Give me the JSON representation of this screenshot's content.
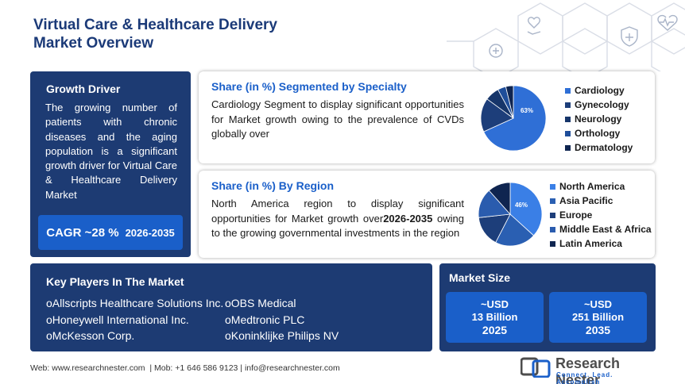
{
  "title": {
    "line1": "Virtual Care & Healthcare Delivery",
    "line2": "Market Overview"
  },
  "growth_driver": {
    "heading": "Growth Driver",
    "text": "The growing number of patients with chronic diseases and the aging population is a significant growth driver for Virtual Care & Healthcare Delivery Market",
    "cagr_label": "CAGR ~28 %",
    "cagr_years": "2026-2035"
  },
  "specialty": {
    "heading": "Share (in %) Segmented by Specialty",
    "text": "Cardiology Segment to display significant opportunities for Market growth owing to the prevalence of CVDs globally over",
    "pie_label": "63%",
    "legend": [
      {
        "label": "Cardiology",
        "color": "#2f6fd6"
      },
      {
        "label": "Gynecology",
        "color": "#1d3e7a"
      },
      {
        "label": "Neurology",
        "color": "#16356a"
      },
      {
        "label": "Orthology",
        "color": "#1f4e9a"
      },
      {
        "label": "Dermatology",
        "color": "#0f2550"
      }
    ]
  },
  "region": {
    "heading": "Share (in %) By Region",
    "text_before": "North America region to display significant opportunities for Market growth over",
    "text_years": "2026-2035",
    "text_after": "owing to the growing governmental investments in the region",
    "pie_label": "46%",
    "legend": [
      {
        "label": "North America",
        "color": "#3a7fe6"
      },
      {
        "label": "Asia Pacific",
        "color": "#2a5fb2"
      },
      {
        "label": "Europe",
        "color": "#1d3e7a"
      },
      {
        "label": "Middle East & Africa",
        "color": "#2a5cae"
      },
      {
        "label": "Latin America",
        "color": "#0f2550"
      }
    ]
  },
  "players": {
    "heading": "Key Players In The Market",
    "col_a": [
      "oAllscripts Healthcare Solutions Inc.",
      "oHoneywell International Inc.",
      "oMcKesson Corp."
    ],
    "col_b": [
      "oOBS Medical",
      "oMedtronic PLC",
      "oKoninklijke Philips NV"
    ]
  },
  "market_size": {
    "heading": "Market Size",
    "items": [
      {
        "prefix": "~USD",
        "value": "13 Billion",
        "year": "2025"
      },
      {
        "prefix": "~USD",
        "value": "251 Billion",
        "year": "2035"
      }
    ]
  },
  "footer": {
    "text": "Web: www.researchnester.com  | Mob: +1 646 586 9123 | info@researchnester.com"
  },
  "logo": {
    "name": "Research Nester",
    "tagline": "Connect. Lead. Accomplish"
  }
}
